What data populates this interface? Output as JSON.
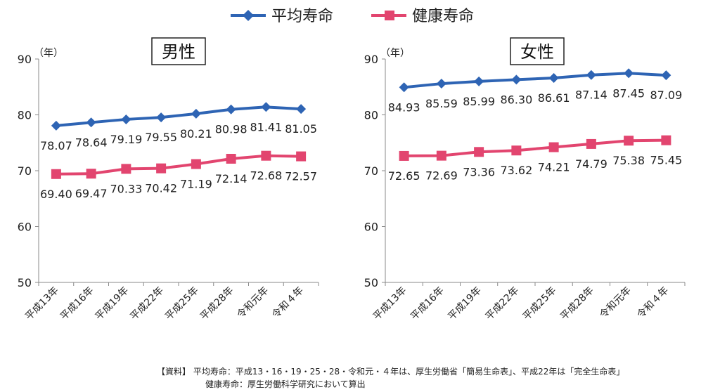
{
  "legend": [
    {
      "label": "平均寿命",
      "color": "#2E64B4",
      "marker": "diamond"
    },
    {
      "label": "健康寿命",
      "color": "#E2456F",
      "marker": "square"
    }
  ],
  "chart_data": [
    {
      "type": "line",
      "title": "男性",
      "ylabel": "（年）",
      "ylim": [
        50,
        90
      ],
      "yticks": [
        50,
        60,
        70,
        80,
        90
      ],
      "categories": [
        "平成13年",
        "平成16年",
        "平成19年",
        "平成22年",
        "平成25年",
        "平成28年",
        "令和元年",
        "令和４年"
      ],
      "series": [
        {
          "name": "平均寿命",
          "color": "#2E64B4",
          "marker": "diamond",
          "values": [
            78.07,
            78.64,
            79.19,
            79.55,
            80.21,
            80.98,
            81.41,
            81.05
          ],
          "labels": [
            "78.07",
            "78.64",
            "79.19",
            "79.55",
            "80.21",
            "80.98",
            "81.41",
            "81.05"
          ]
        },
        {
          "name": "健康寿命",
          "color": "#E2456F",
          "marker": "square",
          "values": [
            69.4,
            69.47,
            70.33,
            70.42,
            71.19,
            72.14,
            72.68,
            72.57
          ],
          "labels": [
            "69.40",
            "69.47",
            "70.33",
            "70.42",
            "71.19",
            "72.14",
            "72.68",
            "72.57"
          ]
        }
      ]
    },
    {
      "type": "line",
      "title": "女性",
      "ylabel": "（年）",
      "ylim": [
        50,
        90
      ],
      "yticks": [
        50,
        60,
        70,
        80,
        90
      ],
      "categories": [
        "平成13年",
        "平成16年",
        "平成19年",
        "平成22年",
        "平成25年",
        "平成28年",
        "令和元年",
        "令和４年"
      ],
      "series": [
        {
          "name": "平均寿命",
          "color": "#2E64B4",
          "marker": "diamond",
          "values": [
            84.93,
            85.59,
            85.99,
            86.3,
            86.61,
            87.14,
            87.45,
            87.09
          ],
          "labels": [
            "84.93",
            "85.59",
            "85.99",
            "86.30",
            "86.61",
            "87.14",
            "87.45",
            "87.09"
          ]
        },
        {
          "name": "健康寿命",
          "color": "#E2456F",
          "marker": "square",
          "values": [
            72.65,
            72.69,
            73.36,
            73.62,
            74.21,
            74.79,
            75.38,
            75.45
          ],
          "labels": [
            "72.65",
            "72.69",
            "73.36",
            "73.62",
            "74.21",
            "74.79",
            "75.38",
            "75.45"
          ]
        }
      ]
    }
  ],
  "notes": {
    "line1": "【資料】 平均寿命：平成13・16・19・25・28・令和元・４年は、厚生労働省「簡易生命表」、平成22年は「完全生命表」",
    "line2": "健康寿命：厚生労働科学研究において算出"
  }
}
